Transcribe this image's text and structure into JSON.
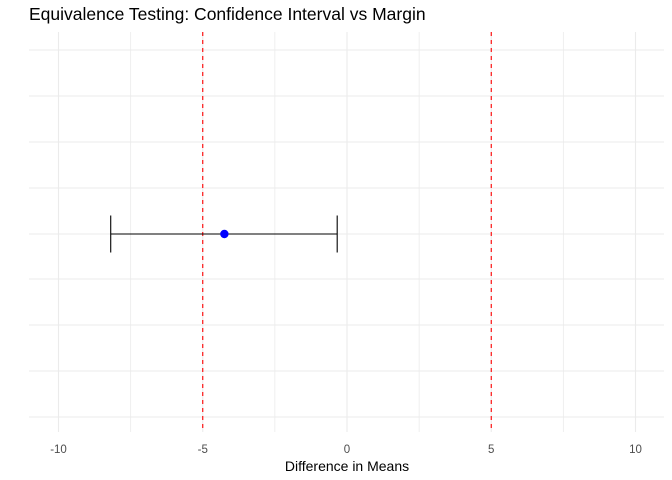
{
  "chart_data": {
    "type": "errorbar",
    "title": "Equivalence Testing: Confidence Interval vs Margin",
    "xlabel": "Difference in Means",
    "ylabel": "",
    "xlim": [
      -11,
      11
    ],
    "x_ticks": [
      -10,
      -5,
      0,
      5,
      10
    ],
    "x_tick_labels": [
      "-10",
      "-5",
      "0",
      "5",
      "10"
    ],
    "grid": true,
    "estimate": {
      "value": -4.25,
      "color": "#0000ff"
    },
    "ci": {
      "lower": -8.19,
      "upper": -0.34,
      "color": "#000000"
    },
    "margins": {
      "lower": -5,
      "upper": 5,
      "color": "#ff0000",
      "linestyle": "dashed"
    }
  }
}
